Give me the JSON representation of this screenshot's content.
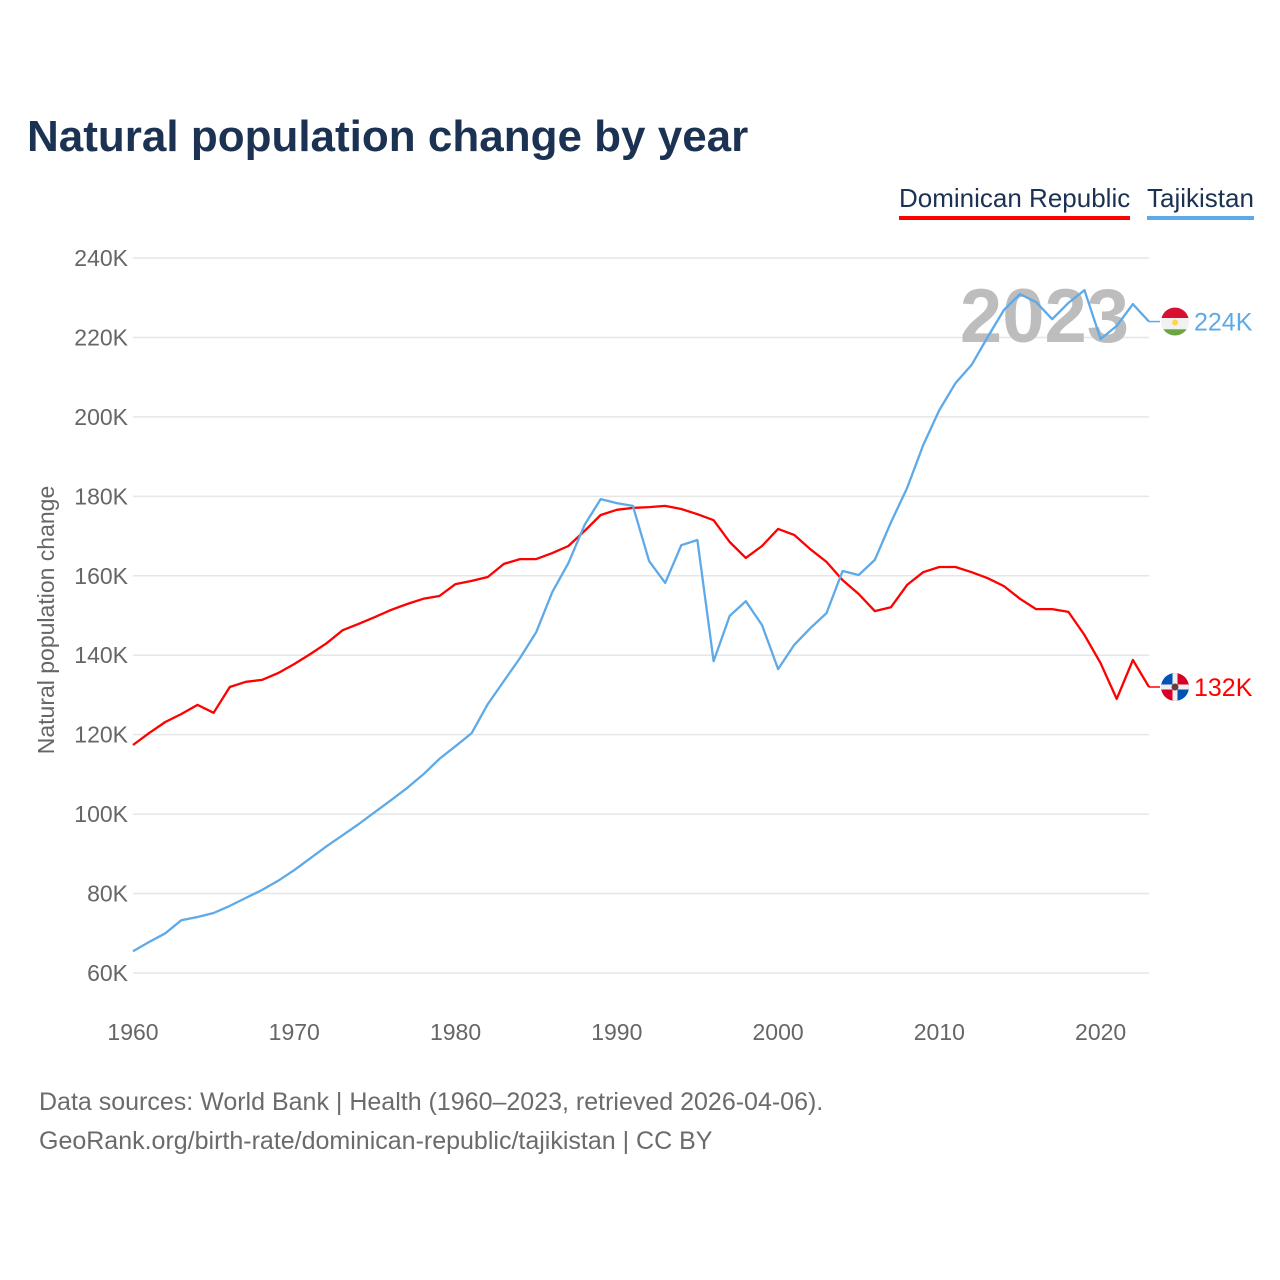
{
  "title": "Natural population change by year",
  "legend": [
    {
      "label": "Dominican Republic",
      "color": "#ff0000"
    },
    {
      "label": "Tajikistan",
      "color": "#5ea9e8"
    }
  ],
  "year_watermark": "2023",
  "footer": {
    "line1": "Data sources: World Bank | Health (1960–2023, retrieved 2026-04-06).",
    "line2": "GeoRank.org/birth-rate/dominican-republic/tajikistan | CC BY"
  },
  "chart_data": {
    "type": "line",
    "title": "Natural population change by year",
    "xlabel": "",
    "ylabel": "Natural population change",
    "xlim": [
      1960,
      2023
    ],
    "ylim": [
      60000,
      240000
    ],
    "xticks": [
      1960,
      1970,
      1980,
      1990,
      2000,
      2010,
      2020
    ],
    "yticks": [
      60000,
      80000,
      100000,
      120000,
      140000,
      160000,
      180000,
      200000,
      220000,
      240000
    ],
    "ytick_labels": [
      "60K",
      "80K",
      "100K",
      "120K",
      "140K",
      "160K",
      "180K",
      "200K",
      "220K",
      "240K"
    ],
    "grid": true,
    "legend_position": "top-right",
    "x_start": 1960,
    "series": [
      {
        "name": "Dominican Republic",
        "color": "#ff0000",
        "end_label": "132K",
        "flag": "dominican-republic",
        "values": [
          117400,
          120400,
          123200,
          125200,
          127500,
          125500,
          132000,
          133300,
          133800,
          135500,
          137800,
          140300,
          143000,
          146300,
          147900,
          149600,
          151400,
          152900,
          154200,
          154900,
          157900,
          158700,
          159700,
          163000,
          164200,
          164200,
          165700,
          167500,
          171300,
          175300,
          176600,
          177100,
          177300,
          177600,
          176800,
          175500,
          174000,
          168500,
          164500,
          167500,
          171800,
          170300,
          166700,
          163500,
          158900,
          155400,
          151100,
          152100,
          157700,
          160900,
          162200,
          162200,
          160900,
          159400,
          157400,
          154200,
          151600,
          151600,
          150900,
          145100,
          138000,
          129000,
          138800,
          132000
        ]
      },
      {
        "name": "Tajikistan",
        "color": "#5ea9e8",
        "end_label": "224K",
        "flag": "tajikistan",
        "values": [
          65500,
          67800,
          70000,
          73300,
          74100,
          75100,
          76900,
          78900,
          80900,
          83200,
          85900,
          88900,
          91900,
          94700,
          97500,
          100500,
          103500,
          106600,
          110000,
          113900,
          117100,
          120400,
          127700,
          133500,
          139300,
          145800,
          155900,
          163200,
          172800,
          179300,
          178300,
          177600,
          163700,
          158200,
          167700,
          169000,
          138500,
          149900,
          153600,
          147600,
          136500,
          142600,
          146800,
          150600,
          161200,
          160200,
          164000,
          173500,
          182100,
          192900,
          201700,
          208500,
          213100,
          220100,
          226900,
          230900,
          228900,
          224600,
          228700,
          231900,
          219600,
          222900,
          228400,
          224000
        ]
      }
    ]
  }
}
